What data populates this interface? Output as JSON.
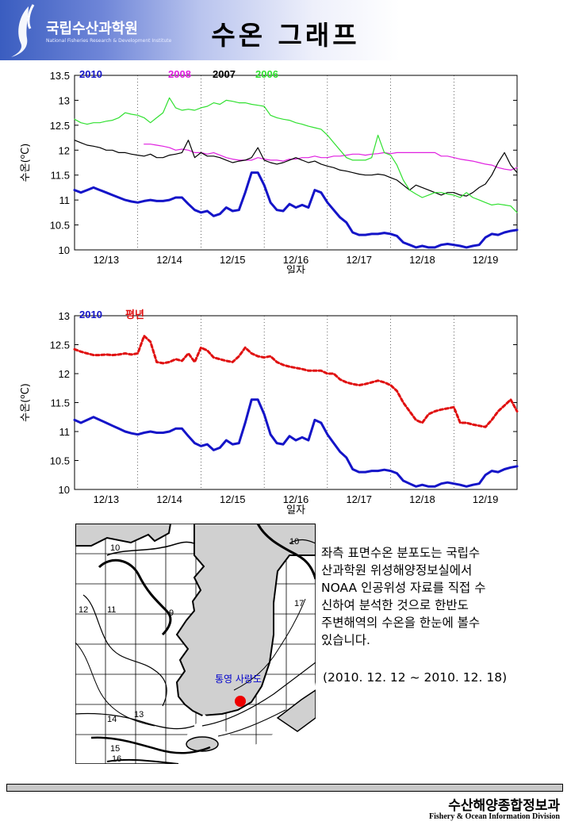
{
  "header": {
    "org_name": "국립수산과학원",
    "org_sub": "National Fisheries Research & Development Institute",
    "title": "수온 그래프"
  },
  "chart_data": [
    {
      "type": "line",
      "ylabel_prefix": "수온(",
      "ylabel_sup": "o",
      "ylabel_suffix": "C)",
      "xlabel": "일자",
      "ylim": [
        10,
        13.5
      ],
      "yticks": [
        "13.5",
        "13",
        "12.5",
        "12",
        "11.5",
        "11",
        "10.5",
        "10"
      ],
      "xticks": [
        "12/13",
        "12/14",
        "12/15",
        "12/16",
        "12/17",
        "12/18",
        "12/19"
      ],
      "grid": "dotted vertical day separators",
      "legend_position": "top-left",
      "series": [
        {
          "name": "2010",
          "color": "#1414c8",
          "width": 3,
          "values": [
            11.2,
            11.15,
            11.2,
            11.25,
            11.2,
            11.15,
            11.1,
            11.05,
            11.0,
            10.97,
            10.95,
            10.98,
            11.0,
            10.98,
            10.98,
            11.0,
            11.05,
            11.05,
            10.92,
            10.8,
            10.75,
            10.78,
            10.68,
            10.72,
            10.85,
            10.78,
            10.8,
            11.15,
            11.55,
            11.55,
            11.3,
            10.95,
            10.8,
            10.78,
            10.92,
            10.85,
            10.9,
            10.85,
            11.2,
            11.15,
            10.95,
            10.8,
            10.65,
            10.55,
            10.35,
            10.3,
            10.3,
            10.32,
            10.32,
            10.34,
            10.32,
            10.28,
            10.15,
            10.1,
            10.05,
            10.08,
            10.05,
            10.05,
            10.1,
            10.12,
            10.1,
            10.08,
            10.05,
            10.08,
            10.1,
            10.25,
            10.32,
            10.3,
            10.35,
            10.38,
            10.4
          ]
        },
        {
          "name": "2008",
          "color": "#e020e0",
          "width": 1.2,
          "values": [
            null,
            null,
            null,
            null,
            null,
            null,
            null,
            null,
            null,
            null,
            null,
            12.12,
            12.12,
            12.1,
            12.08,
            12.05,
            12.0,
            12.02,
            12.0,
            11.95,
            11.95,
            11.92,
            11.95,
            11.9,
            11.85,
            11.82,
            11.8,
            11.8,
            11.8,
            11.85,
            11.82,
            11.8,
            11.8,
            11.78,
            11.82,
            11.82,
            11.85,
            11.85,
            11.88,
            11.85,
            11.85,
            11.88,
            11.88,
            11.9,
            11.92,
            11.92,
            11.9,
            11.92,
            11.93,
            11.95,
            11.93,
            11.95,
            11.95,
            11.95,
            11.95,
            11.95,
            11.95,
            11.95,
            11.88,
            11.88,
            11.85,
            11.82,
            11.8,
            11.78,
            11.75,
            11.72,
            11.7,
            11.65,
            11.62,
            11.6,
            11.65
          ]
        },
        {
          "name": "2007",
          "color": "#000000",
          "width": 1.2,
          "values": [
            12.2,
            12.15,
            12.1,
            12.08,
            12.05,
            12.0,
            12.0,
            11.95,
            11.95,
            11.92,
            11.9,
            11.88,
            11.92,
            11.85,
            11.85,
            11.9,
            11.92,
            11.95,
            12.2,
            11.85,
            11.95,
            11.88,
            11.88,
            11.85,
            11.8,
            11.75,
            11.78,
            11.8,
            11.85,
            12.05,
            11.8,
            11.75,
            11.72,
            11.75,
            11.8,
            11.85,
            11.8,
            11.75,
            11.78,
            11.72,
            11.68,
            11.65,
            11.6,
            11.58,
            11.55,
            11.52,
            11.5,
            11.5,
            11.52,
            11.5,
            11.45,
            11.4,
            11.3,
            11.2,
            11.3,
            11.25,
            11.2,
            11.15,
            11.1,
            11.15,
            11.15,
            11.1,
            11.08,
            11.15,
            11.25,
            11.32,
            11.5,
            11.75,
            11.95,
            11.7,
            11.55
          ]
        },
        {
          "name": "2006",
          "color": "#30e030",
          "width": 1.2,
          "values": [
            12.62,
            12.55,
            12.52,
            12.55,
            12.55,
            12.58,
            12.6,
            12.65,
            12.75,
            12.72,
            12.7,
            12.65,
            12.55,
            12.65,
            12.75,
            13.05,
            12.85,
            12.8,
            12.82,
            12.8,
            12.85,
            12.88,
            12.95,
            12.92,
            13.0,
            12.98,
            12.95,
            12.95,
            12.92,
            12.9,
            12.88,
            12.7,
            12.65,
            12.62,
            12.6,
            12.55,
            12.52,
            12.48,
            12.45,
            12.42,
            12.3,
            12.15,
            12.0,
            11.85,
            11.8,
            11.8,
            11.8,
            11.85,
            12.3,
            11.95,
            11.9,
            11.7,
            11.4,
            11.2,
            11.12,
            11.05,
            11.1,
            11.15,
            11.15,
            11.12,
            11.1,
            11.05,
            11.15,
            11.05,
            11.0,
            10.95,
            10.9,
            10.92,
            10.9,
            10.88,
            10.75
          ]
        }
      ]
    },
    {
      "type": "line",
      "ylabel_prefix": "수온(",
      "ylabel_sup": "o",
      "ylabel_suffix": "C)",
      "xlabel": "일자",
      "ylim": [
        10,
        13
      ],
      "yticks": [
        "13",
        "12.5",
        "12",
        "11.5",
        "11",
        "10.5",
        "10"
      ],
      "xticks": [
        "12/13",
        "12/14",
        "12/15",
        "12/16",
        "12/17",
        "12/18",
        "12/19"
      ],
      "grid": "dotted vertical day separators",
      "legend_position": "top-left",
      "series": [
        {
          "name": "2010",
          "color": "#1414c8",
          "width": 3,
          "style": "line",
          "values": [
            11.2,
            11.15,
            11.2,
            11.25,
            11.2,
            11.15,
            11.1,
            11.05,
            11.0,
            10.97,
            10.95,
            10.98,
            11.0,
            10.98,
            10.98,
            11.0,
            11.05,
            11.05,
            10.92,
            10.8,
            10.75,
            10.78,
            10.68,
            10.72,
            10.85,
            10.78,
            10.8,
            11.15,
            11.55,
            11.55,
            11.3,
            10.95,
            10.8,
            10.78,
            10.92,
            10.85,
            10.9,
            10.85,
            11.2,
            11.15,
            10.95,
            10.8,
            10.65,
            10.55,
            10.35,
            10.3,
            10.3,
            10.32,
            10.32,
            10.34,
            10.32,
            10.28,
            10.15,
            10.1,
            10.05,
            10.08,
            10.05,
            10.05,
            10.1,
            10.12,
            10.1,
            10.08,
            10.05,
            10.08,
            10.1,
            10.25,
            10.32,
            10.3,
            10.35,
            10.38,
            10.4
          ]
        },
        {
          "name": "평년",
          "color": "#e01010",
          "width": 3,
          "style": "dashed",
          "values": [
            12.42,
            12.38,
            12.35,
            12.32,
            12.32,
            12.33,
            12.32,
            12.33,
            12.35,
            12.33,
            12.35,
            12.65,
            12.55,
            12.2,
            12.18,
            12.2,
            12.25,
            12.22,
            12.35,
            12.2,
            12.45,
            12.4,
            12.28,
            12.25,
            12.22,
            12.2,
            12.3,
            12.45,
            12.35,
            12.3,
            12.28,
            12.3,
            12.2,
            12.15,
            12.12,
            12.1,
            12.08,
            12.05,
            12.05,
            12.05,
            12.0,
            12.0,
            11.9,
            11.85,
            11.82,
            11.8,
            11.82,
            11.85,
            11.88,
            11.85,
            11.8,
            11.7,
            11.5,
            11.35,
            11.2,
            11.15,
            11.3,
            11.35,
            11.38,
            11.4,
            11.42,
            11.15,
            11.15,
            11.12,
            11.1,
            11.08,
            11.2,
            11.35,
            11.45,
            11.55,
            11.35
          ]
        }
      ]
    }
  ],
  "map": {
    "isotherm_labels": [
      "10",
      "11",
      "9",
      "12",
      "13",
      "14",
      "15",
      "16",
      "17",
      "10"
    ],
    "marker_label": "통영 사량도"
  },
  "description": {
    "lines": [
      "좌측 표면수온 분포도는 국립수",
      "산과학원 위성해양정보실에서",
      "NOAA 인공위성 자료를 직접 수",
      "신하여 분석한 것으로  한반도",
      "주변해역의 수온을 한눈에 볼수",
      "있습니다."
    ],
    "period": "(2010. 12. 12 ~ 2010. 12. 18)"
  },
  "footer": {
    "title": "수산해양종합정보과",
    "subtitle": "Fishery & Ocean Information Division"
  }
}
